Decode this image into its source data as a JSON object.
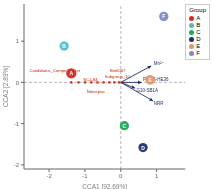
{
  "chart_data": {
    "type": "scatter",
    "x_label": "CCA1 [92.69%]",
    "y_label": "CCA2 [2.89%]",
    "xlim": [
      -2.7,
      1.8
    ],
    "ylim": [
      -2.1,
      1.9
    ],
    "xticks": [
      -2,
      -1,
      0,
      1
    ],
    "yticks": [
      -2,
      -1,
      0,
      1
    ],
    "grid": false,
    "legend": "right",
    "legend_title": "Group",
    "series": [
      {
        "name": "A",
        "color": "#d42b1e",
        "x": [
          -1.38
        ],
        "y": [
          0.22
        ],
        "size": [
          55
        ]
      },
      {
        "name": "B",
        "color": "#4dbdcc",
        "x": [
          -1.58
        ],
        "y": [
          0.88
        ],
        "size": [
          45
        ]
      },
      {
        "name": "C",
        "color": "#1aaa5a",
        "x": [
          0.1
        ],
        "y": [
          -1.05
        ],
        "size": [
          45
        ]
      },
      {
        "name": "D",
        "color": "#1e2f6e",
        "x": [
          0.62
        ],
        "y": [
          -1.58
        ],
        "size": [
          45
        ]
      },
      {
        "name": "E",
        "color": "#e8956a",
        "x": [
          0.82
        ],
        "y": [
          0.06
        ],
        "size": [
          50
        ]
      },
      {
        "name": "F",
        "color": "#8088c8",
        "x": [
          1.2
        ],
        "y": [
          1.6
        ],
        "size": [
          45
        ]
      }
    ],
    "species_color": "#cc2200",
    "species_points": {
      "x": [
        -1.38,
        -1.18,
        -1.0,
        -0.82,
        -0.65,
        -0.48,
        -0.32,
        -0.18,
        -0.05,
        0.05
      ],
      "y": [
        0.0,
        0.0,
        0.0,
        0.0,
        0.0,
        0.0,
        0.0,
        0.0,
        0.0,
        0.0
      ]
    },
    "species_labels": [
      {
        "text": "Candidatus_Competibacter",
        "x": -2.55,
        "y": 0.3
      },
      {
        "text": "Bin6067",
        "x": -0.3,
        "y": 0.3
      },
      {
        "text": "Subgroup_10",
        "x": -0.45,
        "y": 0.15
      },
      {
        "text": "SC-I-84",
        "x": -1.05,
        "y": 0.06
      },
      {
        "text": "Nitrospira",
        "x": -0.95,
        "y": -0.22
      }
    ],
    "arrow_color": "#1e2f6e",
    "arrows": [
      {
        "label": "Mn²⁺",
        "x": 0.85,
        "y": 0.4,
        "label_x": 0.92,
        "label_y": 0.46
      },
      {
        "label": "NRR",
        "x": 0.9,
        "y": -0.45,
        "label_x": 0.92,
        "label_y": -0.5
      },
      {
        "label": "PHOS-HE36",
        "x": 0.58,
        "y": 0.0,
        "label_x": 0.62,
        "label_y": 0.07
      },
      {
        "label": "G10-SB1A",
        "x": 0.4,
        "y": -0.14,
        "label_x": 0.44,
        "label_y": -0.2
      }
    ]
  }
}
